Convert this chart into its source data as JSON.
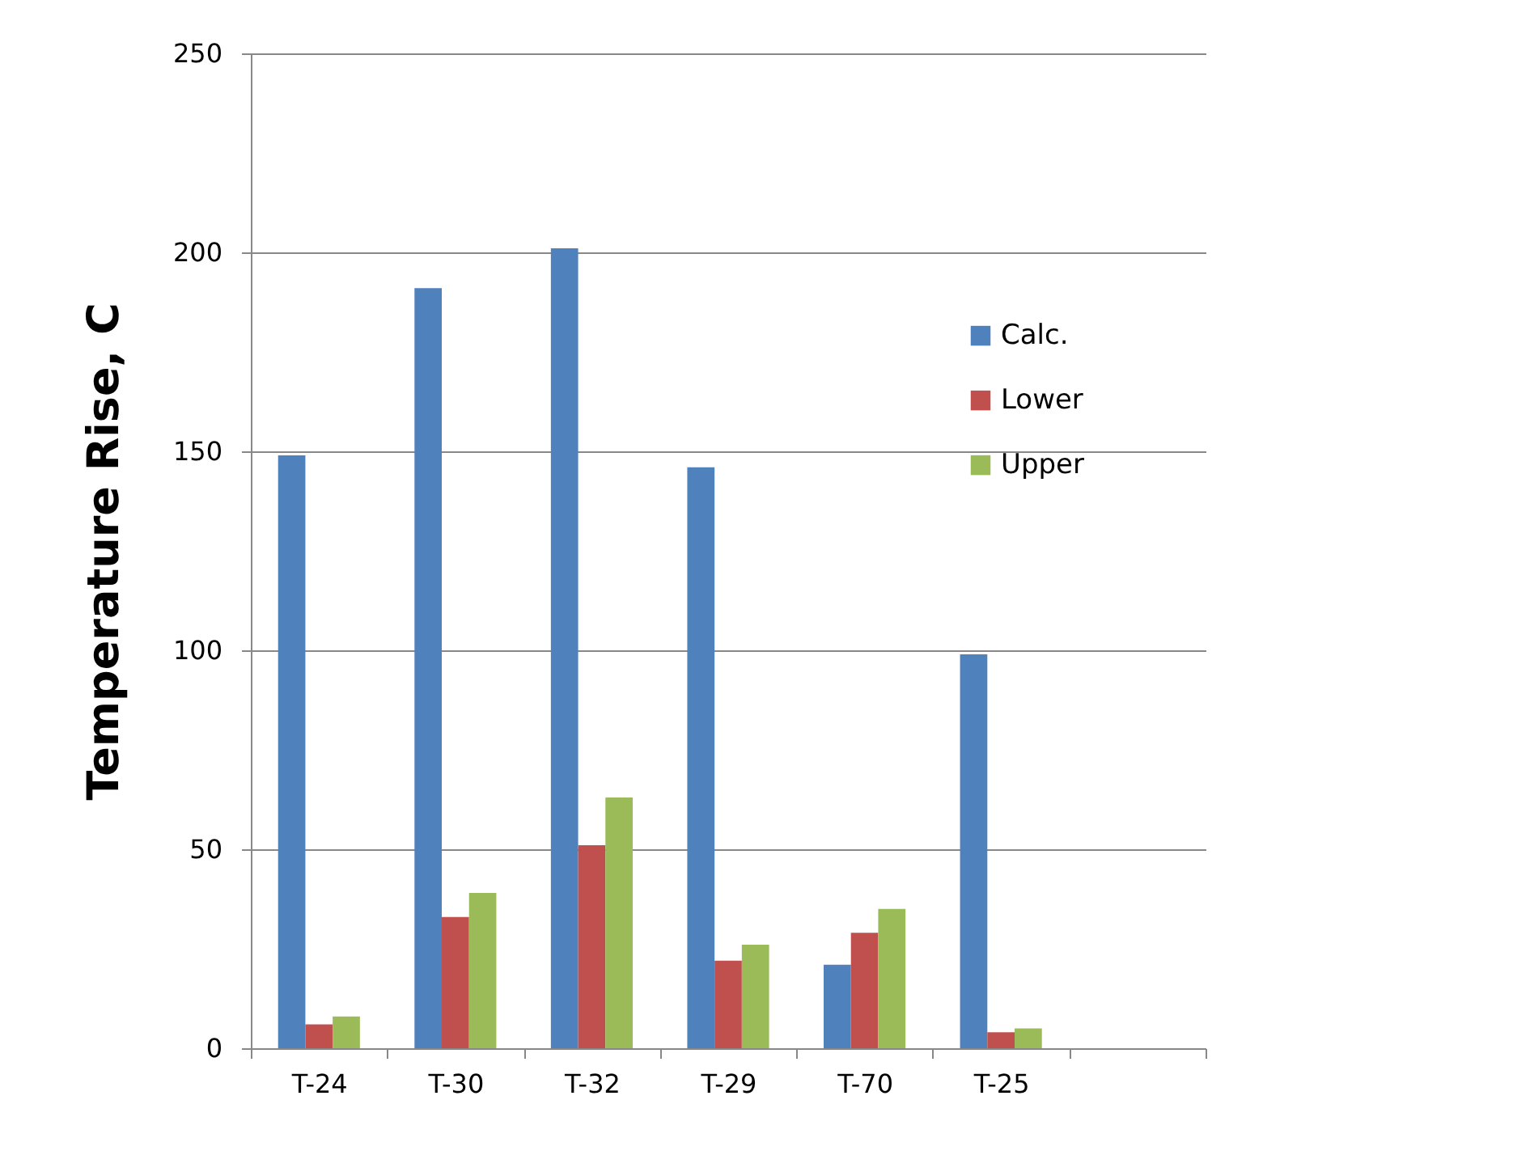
{
  "chart_data": {
    "type": "bar",
    "ylabel": "Temperature Rise, C",
    "categories": [
      "T-24",
      "T-30",
      "T-32",
      "T-29",
      "T-70",
      "T-25",
      null
    ],
    "series": [
      {
        "name": "Calc.",
        "color": "#4f81bd",
        "values": [
          149,
          191,
          201,
          146,
          21,
          99,
          null
        ]
      },
      {
        "name": "Lower",
        "color": "#c0504d",
        "values": [
          6,
          33,
          51,
          22,
          29,
          4,
          null
        ]
      },
      {
        "name": "Upper",
        "color": "#9bbb59",
        "values": [
          8,
          39,
          63,
          26,
          35,
          5,
          null
        ]
      }
    ],
    "ylim": [
      0,
      250
    ],
    "yticks": [
      0,
      50,
      100,
      150,
      200,
      250
    ],
    "grid": "y",
    "legend": "right"
  }
}
